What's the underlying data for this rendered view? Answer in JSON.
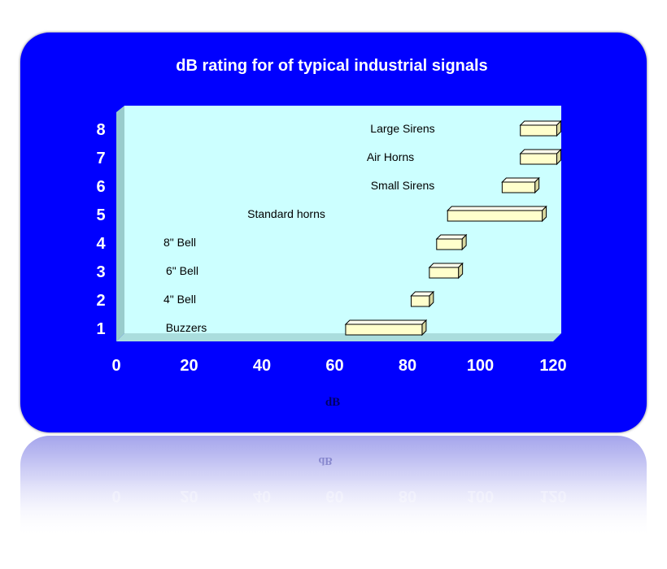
{
  "chart_data": {
    "type": "bar",
    "orientation": "horizontal-floating",
    "title": "dB rating for of typical industrial signals",
    "xlabel": "dB",
    "ylabel": "",
    "xlim": [
      0,
      120
    ],
    "x_ticks": [
      "0",
      "20",
      "40",
      "60",
      "80",
      "100",
      "120"
    ],
    "y_ticks": [
      "1",
      "2",
      "3",
      "4",
      "5",
      "6",
      "7",
      "8"
    ],
    "grid": false,
    "series": [
      {
        "values": [
          {
            "category": "1",
            "label": "Buzzers",
            "start": 63,
            "end": 84
          },
          {
            "category": "2",
            "label": "4\" Bell",
            "start": 81,
            "end": 86
          },
          {
            "category": "3",
            "label": "6\" Bell",
            "start": 86,
            "end": 94
          },
          {
            "category": "4",
            "label": "8\" Bell",
            "start": 88,
            "end": 95
          },
          {
            "category": "5",
            "label": "Standard  horns",
            "start": 91,
            "end": 117
          },
          {
            "category": "6",
            "label": "Small Sirens",
            "start": 106,
            "end": 115
          },
          {
            "category": "7",
            "label": "Air Horns",
            "start": 111,
            "end": 121
          },
          {
            "category": "8",
            "label": "Large Sirens",
            "start": 111,
            "end": 121
          }
        ]
      }
    ],
    "colors": {
      "background": "#0000ff",
      "plot_area": "#ccffff",
      "bar_front": "#ffffcc",
      "bar_top": "#ffffee",
      "bar_side": "#d8d8a0",
      "text": "#ffffff"
    }
  }
}
